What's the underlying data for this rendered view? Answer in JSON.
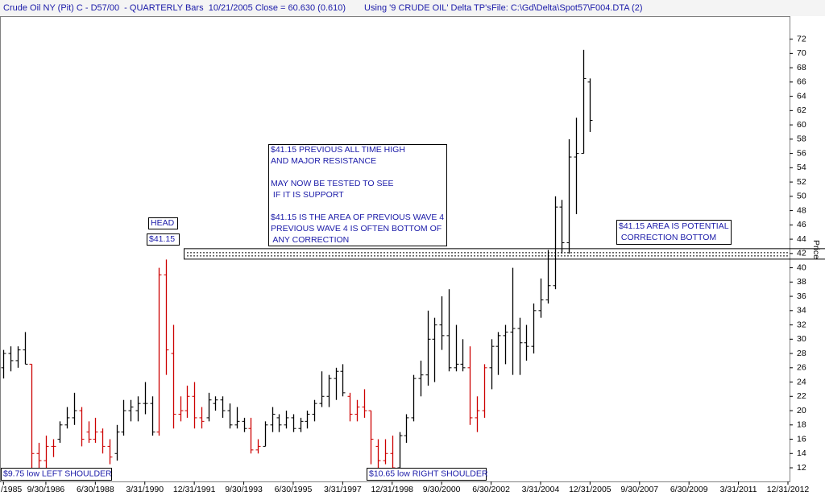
{
  "chart_data": {
    "type": "ohlc",
    "title": "Crude Oil NY (Pit) C - D57/00  - QUARTERLY Bars  10/21/2005 Close = 60.630 (0.610)",
    "subtitle": "Using '9 CRUDE OIL' Delta TP's",
    "file": "File: C:\\Gd\\Delta\\Spot57\\F004.DTA (2)",
    "y_label": "Price",
    "ylim": [
      10.2,
      75
    ],
    "yticks": [
      12,
      14,
      16,
      18,
      20,
      22,
      24,
      26,
      28,
      30,
      32,
      34,
      36,
      38,
      40,
      42,
      44,
      46,
      48,
      50,
      52,
      54,
      56,
      58,
      60,
      62,
      64,
      66,
      68,
      70,
      72
    ],
    "resistance_level": 41.15,
    "categories": [
      "/1985",
      null,
      null,
      null,
      null,
      null,
      "9/30/1986",
      null,
      null,
      null,
      null,
      null,
      null,
      "6/30/1988",
      null,
      null,
      null,
      null,
      null,
      null,
      "3/31/1990",
      null,
      null,
      null,
      null,
      null,
      null,
      "12/31/1991",
      null,
      null,
      null,
      null,
      null,
      null,
      "9/30/1993",
      null,
      null,
      null,
      null,
      null,
      null,
      "6/30/1995",
      null,
      null,
      null,
      null,
      null,
      null,
      "3/31/1997",
      null,
      null,
      null,
      null,
      null,
      null,
      "12/31/1998",
      null,
      null,
      null,
      null,
      null,
      null,
      "9/30/2000",
      null,
      null,
      null,
      null,
      null,
      null,
      "6/30/2002",
      null,
      null,
      null,
      null,
      null,
      null,
      "3/31/2004",
      null,
      null,
      null,
      null,
      null,
      null,
      "12/31/2005",
      null,
      null,
      null,
      null,
      null,
      null,
      "9/30/2007",
      null,
      null,
      null,
      null,
      null,
      null,
      "6/30/2009",
      null,
      null,
      null,
      null,
      null,
      null,
      "3/31/2011",
      null,
      null,
      null,
      null,
      null,
      null,
      "12/31/2012"
    ],
    "open": [
      26,
      28,
      27,
      28.5,
      26.5,
      14,
      13,
      15,
      16,
      18,
      19,
      20,
      17,
      16,
      17,
      15,
      14,
      17,
      20,
      20,
      21,
      21,
      17,
      39,
      28,
      19.5,
      20,
      22,
      19,
      19,
      21,
      21.5,
      20,
      18,
      18.5,
      17.5,
      14.5,
      15,
      18,
      19,
      18,
      19,
      17.5,
      18.5,
      19.5,
      21,
      22,
      24.5,
      25.5,
      22,
      19.5,
      20.5,
      20,
      15,
      13,
      14,
      12,
      16.5,
      19,
      24.5,
      25,
      30,
      32,
      30.5,
      26,
      26.5,
      26,
      19,
      20,
      26,
      29,
      30.5,
      31,
      31.5,
      29.5,
      29,
      34,
      35.5,
      37.5,
      48.5,
      43.5,
      55.5,
      56,
      66,
      null,
      null,
      null,
      null,
      null,
      null,
      null,
      null,
      null,
      null,
      null,
      null,
      null,
      null,
      null,
      null,
      null,
      null,
      null,
      null,
      null,
      null,
      null,
      null,
      null,
      null,
      null,
      null
    ],
    "high": [
      28.5,
      29,
      29,
      31,
      26.5,
      15.5,
      16.5,
      16,
      18.5,
      20.5,
      22.5,
      20.5,
      18.5,
      19,
      17.5,
      16,
      18,
      21.5,
      21.5,
      22,
      24,
      22,
      40,
      41.15,
      32,
      22,
      23.5,
      24,
      20.5,
      22.5,
      22,
      22,
      21,
      20.5,
      19,
      19,
      16,
      18.5,
      20.5,
      19.5,
      20,
      19.5,
      19,
      20,
      21.5,
      25.5,
      25,
      26,
      26.5,
      22.5,
      21.5,
      23,
      20,
      16,
      16,
      16.5,
      17,
      19.5,
      25,
      27,
      34,
      33,
      36,
      37,
      32,
      30,
      29,
      22,
      26.5,
      30,
      31,
      32,
      40,
      33,
      32,
      35,
      38.5,
      42.5,
      50,
      49.5,
      58,
      61,
      70.5,
      66.5,
      null,
      null,
      null,
      null,
      null,
      null,
      null,
      null,
      null,
      null,
      null,
      null,
      null,
      null,
      null,
      null,
      null,
      null,
      null,
      null,
      null,
      null,
      null,
      null,
      null,
      null,
      null,
      null
    ],
    "low": [
      24.5,
      25.5,
      26,
      26.5,
      11,
      11.5,
      12,
      13.5,
      15.5,
      17.5,
      18,
      15,
      15.5,
      15.5,
      14,
      12.5,
      13,
      16.5,
      18.5,
      18.5,
      19.5,
      16.5,
      16.5,
      25,
      17.5,
      18.5,
      19,
      17.5,
      17.5,
      18.5,
      20,
      19,
      17.5,
      17.5,
      17,
      14,
      14,
      15,
      17,
      17,
      17.5,
      17,
      17,
      17.5,
      18.5,
      20.5,
      20.5,
      21.5,
      22,
      18.5,
      18.5,
      19,
      12.5,
      12,
      12.5,
      11.5,
      12,
      15.5,
      18.5,
      22,
      23.5,
      24,
      28.5,
      25.5,
      25.5,
      25.5,
      18,
      17,
      19,
      23,
      25,
      26.5,
      25,
      25,
      27,
      28,
      33,
      35,
      37,
      42,
      42,
      47.5,
      56,
      59,
      null,
      null,
      null,
      null,
      null,
      null,
      null,
      null,
      null,
      null,
      null,
      null,
      null,
      null,
      null,
      null,
      null,
      null,
      null,
      null,
      null,
      null,
      null,
      null,
      null,
      null,
      null,
      null
    ],
    "close": [
      28,
      27,
      28.5,
      26.5,
      14,
      13,
      15,
      15,
      18,
      19,
      20,
      16,
      16,
      17,
      15,
      13.5,
      17,
      20,
      20.5,
      21,
      21,
      17,
      39,
      28.5,
      19.5,
      20,
      22,
      19,
      18.5,
      21.5,
      21.5,
      20,
      18,
      18.5,
      17.5,
      14.5,
      15,
      18,
      19.5,
      18,
      19,
      17.5,
      18.5,
      19.5,
      21,
      22,
      24.5,
      25.5,
      22.5,
      19.5,
      20.5,
      20,
      16,
      13,
      14,
      12,
      16.5,
      19,
      24.5,
      25,
      30,
      32,
      30.5,
      26,
      26.5,
      26,
      19,
      20,
      26,
      29,
      30.5,
      31,
      31.5,
      29.5,
      29,
      34,
      35.5,
      37.5,
      48.5,
      43.5,
      55.5,
      56,
      66.5,
      60.63,
      null,
      null,
      null,
      null,
      null,
      null,
      null,
      null,
      null,
      null,
      null,
      null,
      null,
      null,
      null,
      null,
      null,
      null,
      null,
      null,
      null,
      null,
      null,
      null,
      null,
      null,
      null,
      null
    ],
    "colors": [
      "#000000",
      "#000000",
      "#000000",
      "#000000",
      "#cc0000",
      "#cc0000",
      "#cc0000",
      "#cc0000",
      "#000000",
      "#000000",
      "#000000",
      "#cc0000",
      "#cc0000",
      "#cc0000",
      "#cc0000",
      "#cc0000",
      "#000000",
      "#000000",
      "#000000",
      "#000000",
      "#000000",
      "#000000",
      "#cc0000",
      "#cc0000",
      "#cc0000",
      "#cc0000",
      "#cc0000",
      "#cc0000",
      "#cc0000",
      "#000000",
      "#000000",
      "#000000",
      "#000000",
      "#000000",
      "#000000",
      "#cc0000",
      "#cc0000",
      "#000000",
      "#000000",
      "#000000",
      "#000000",
      "#000000",
      "#000000",
      "#000000",
      "#000000",
      "#000000",
      "#000000",
      "#000000",
      "#000000",
      "#cc0000",
      "#cc0000",
      "#cc0000",
      "#cc0000",
      "#cc0000",
      "#cc0000",
      "#cc0000",
      "#000000",
      "#000000",
      "#000000",
      "#000000",
      "#000000",
      "#000000",
      "#000000",
      "#000000",
      "#000000",
      "#000000",
      "#cc0000",
      "#cc0000",
      "#cc0000",
      "#000000",
      "#000000",
      "#000000",
      "#000000",
      "#000000",
      "#000000",
      "#000000",
      "#000000",
      "#000000",
      "#000000",
      "#000000",
      "#000000",
      "#000000",
      "#000000",
      "#000000",
      null,
      null,
      null,
      null,
      null,
      null,
      null,
      null,
      null,
      null,
      null,
      null,
      null,
      null,
      null,
      null,
      null,
      null,
      null,
      null,
      null,
      null,
      null,
      null,
      null,
      null,
      null,
      null
    ],
    "annotations": [
      {
        "lines": [
          "HEAD"
        ]
      },
      {
        "lines": [
          "$41.15"
        ]
      },
      {
        "lines": [
          "$41.15 PREVIOUS ALL TIME HIGH",
          "AND MAJOR RESISTANCE",
          "MAY NOW BE TESTED TO SEE",
          " IF IT IS SUPPORT",
          "$41.15 IS THE AREA OF PREVIOUS WAVE 4",
          "PREVIOUS WAVE 4 IS OFTEN BOTTOM OF",
          " ANY CORRECTION"
        ]
      },
      {
        "lines": [
          "$41.15 AREA IS POTENTIAL",
          " CORRECTION BOTTOM"
        ]
      },
      {
        "lines": [
          "$9.75 low LEFT SHOULDER"
        ]
      },
      {
        "lines": [
          "$10.65 low RIGHT SHOULDER"
        ]
      }
    ]
  }
}
